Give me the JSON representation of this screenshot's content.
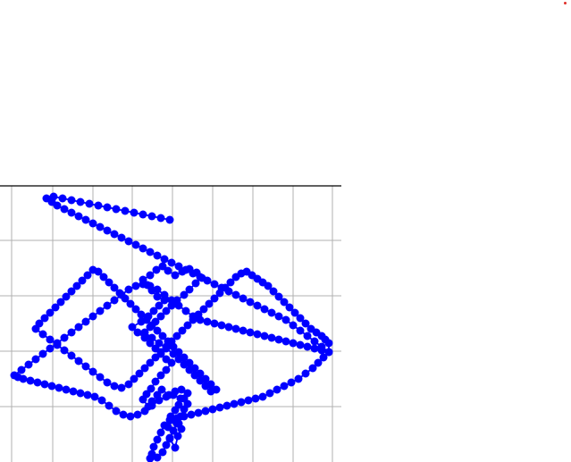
{
  "colors": {
    "series": "#0000ff",
    "grid": "#b0b0b0",
    "axis": "#000000",
    "marker": "#e0302a",
    "background": "#ffffff"
  },
  "chart_data": {
    "type": "line",
    "title": "",
    "xlabel": "",
    "ylabel": "",
    "grid": true,
    "legend": "none",
    "xlim": [
      0,
      382
    ],
    "ylim": [
      0,
      309
    ],
    "xgrid": [
      13,
      59,
      104,
      148,
      193,
      238,
      283,
      328,
      372
    ],
    "ygrid": [
      61,
      123,
      185,
      247
    ],
    "series": [
      {
        "marker": "circle",
        "values": [
          [
            190,
            283
          ],
          [
            196,
            293
          ],
          [
            199,
            280
          ],
          [
            203,
            272
          ],
          [
            200,
            266
          ],
          [
            194,
            262
          ],
          [
            188,
            270
          ],
          [
            191,
            258
          ],
          [
            196,
            251
          ],
          [
            200,
            245
          ],
          [
            206,
            238
          ],
          [
            210,
            232
          ],
          [
            203,
            228
          ],
          [
            196,
            230
          ],
          [
            189,
            234
          ],
          [
            181,
            228
          ],
          [
            176,
            234
          ],
          [
            170,
            241
          ],
          [
            166,
            247
          ],
          [
            160,
            239
          ],
          [
            164,
            233
          ],
          [
            169,
            227
          ],
          [
            174,
            219
          ],
          [
            180,
            212
          ],
          [
            186,
            206
          ],
          [
            192,
            198
          ],
          [
            186,
            194
          ],
          [
            180,
            188
          ],
          [
            174,
            182
          ],
          [
            168,
            176
          ],
          [
            162,
            170
          ],
          [
            154,
            164
          ],
          [
            148,
            158
          ],
          [
            158,
            152
          ],
          [
            166,
            146
          ],
          [
            172,
            140
          ],
          [
            178,
            134
          ],
          [
            184,
            128
          ],
          [
            176,
            124
          ],
          [
            170,
            117
          ],
          [
            165,
            111
          ],
          [
            160,
            105
          ],
          [
            168,
            100
          ],
          [
            175,
            94
          ],
          [
            182,
            90
          ],
          [
            188,
            95
          ],
          [
            196,
            100
          ],
          [
            204,
            96
          ],
          [
            212,
            93
          ],
          [
            220,
            97
          ],
          [
            226,
            103
          ],
          [
            219,
            109
          ],
          [
            212,
            116
          ],
          [
            206,
            122
          ],
          [
            198,
            128
          ],
          [
            192,
            134
          ],
          [
            186,
            140
          ],
          [
            180,
            146
          ],
          [
            174,
            152
          ],
          [
            168,
            158
          ],
          [
            162,
            164
          ],
          [
            170,
            170
          ],
          [
            178,
            176
          ],
          [
            186,
            182
          ],
          [
            194,
            188
          ],
          [
            200,
            194
          ],
          [
            206,
            200
          ],
          [
            212,
            206
          ],
          [
            218,
            212
          ],
          [
            224,
            218
          ],
          [
            230,
            224
          ],
          [
            236,
            230
          ],
          [
            242,
            228
          ],
          [
            236,
            222
          ],
          [
            230,
            216
          ],
          [
            224,
            210
          ],
          [
            218,
            204
          ],
          [
            212,
            198
          ],
          [
            206,
            192
          ],
          [
            200,
            186
          ],
          [
            194,
            180
          ],
          [
            188,
            174
          ],
          [
            182,
            168
          ],
          [
            176,
            162
          ],
          [
            170,
            156
          ],
          [
            164,
            150
          ],
          [
            158,
            144
          ],
          [
            152,
            138
          ],
          [
            146,
            132
          ],
          [
            140,
            126
          ],
          [
            134,
            120
          ],
          [
            128,
            114
          ],
          [
            122,
            108
          ],
          [
            116,
            102
          ],
          [
            110,
            96
          ],
          [
            104,
            94
          ],
          [
            98,
            100
          ],
          [
            92,
            106
          ],
          [
            86,
            112
          ],
          [
            80,
            118
          ],
          [
            74,
            124
          ],
          [
            68,
            130
          ],
          [
            62,
            136
          ],
          [
            56,
            142
          ],
          [
            50,
            148
          ],
          [
            44,
            154
          ],
          [
            40,
            160
          ],
          [
            48,
            166
          ],
          [
            56,
            172
          ],
          [
            64,
            178
          ],
          [
            72,
            184
          ],
          [
            80,
            190
          ],
          [
            88,
            196
          ],
          [
            96,
            202
          ],
          [
            104,
            208
          ],
          [
            112,
            214
          ],
          [
            120,
            220
          ],
          [
            128,
            224
          ],
          [
            136,
            226
          ],
          [
            144,
            222
          ],
          [
            150,
            216
          ],
          [
            156,
            210
          ],
          [
            162,
            204
          ],
          [
            168,
            198
          ],
          [
            174,
            192
          ],
          [
            180,
            186
          ],
          [
            186,
            180
          ],
          [
            192,
            174
          ],
          [
            198,
            168
          ],
          [
            204,
            162
          ],
          [
            210,
            156
          ],
          [
            216,
            150
          ],
          [
            222,
            144
          ],
          [
            228,
            138
          ],
          [
            234,
            132
          ],
          [
            240,
            126
          ],
          [
            246,
            120
          ],
          [
            252,
            114
          ],
          [
            258,
            108
          ],
          [
            264,
            102
          ],
          [
            270,
            98
          ],
          [
            276,
            96
          ],
          [
            282,
            100
          ],
          [
            288,
            104
          ],
          [
            294,
            108
          ],
          [
            300,
            112
          ],
          [
            306,
            118
          ],
          [
            312,
            124
          ],
          [
            318,
            130
          ],
          [
            324,
            136
          ],
          [
            330,
            142
          ],
          [
            336,
            148
          ],
          [
            342,
            154
          ],
          [
            348,
            160
          ],
          [
            354,
            164
          ],
          [
            360,
            168
          ],
          [
            364,
            172
          ],
          [
            368,
            176
          ],
          [
            368,
            186
          ],
          [
            362,
            192
          ],
          [
            356,
            198
          ],
          [
            350,
            204
          ],
          [
            342,
            210
          ],
          [
            334,
            216
          ],
          [
            326,
            220
          ],
          [
            318,
            224
          ],
          [
            310,
            228
          ],
          [
            302,
            232
          ],
          [
            294,
            236
          ],
          [
            286,
            238
          ],
          [
            278,
            240
          ],
          [
            270,
            242
          ],
          [
            262,
            244
          ],
          [
            254,
            246
          ],
          [
            246,
            248
          ],
          [
            238,
            250
          ],
          [
            230,
            252
          ],
          [
            222,
            254
          ],
          [
            214,
            256
          ],
          [
            206,
            258
          ],
          [
            198,
            260
          ],
          [
            190,
            262
          ],
          [
            184,
            268
          ],
          [
            180,
            276
          ],
          [
            176,
            284
          ],
          [
            172,
            292
          ],
          [
            170,
            300
          ],
          [
            168,
            305
          ],
          [
            176,
            304
          ],
          [
            182,
            298
          ],
          [
            186,
            290
          ],
          [
            190,
            282
          ],
          [
            194,
            274
          ],
          [
            198,
            266
          ],
          [
            202,
            258
          ],
          [
            206,
            250
          ],
          [
            210,
            244
          ],
          [
            202,
            238
          ],
          [
            194,
            234
          ],
          [
            186,
            236
          ],
          [
            178,
            240
          ],
          [
            170,
            246
          ],
          [
            162,
            252
          ],
          [
            154,
            256
          ],
          [
            146,
            258
          ],
          [
            138,
            256
          ],
          [
            130,
            252
          ],
          [
            122,
            246
          ],
          [
            114,
            240
          ],
          [
            106,
            236
          ],
          [
            98,
            234
          ],
          [
            90,
            232
          ],
          [
            82,
            230
          ],
          [
            74,
            228
          ],
          [
            66,
            226
          ],
          [
            58,
            224
          ],
          [
            50,
            222
          ],
          [
            42,
            220
          ],
          [
            34,
            218
          ],
          [
            26,
            216
          ],
          [
            20,
            214
          ],
          [
            16,
            212
          ],
          [
            24,
            206
          ],
          [
            32,
            200
          ],
          [
            40,
            194
          ],
          [
            48,
            188
          ],
          [
            56,
            182
          ],
          [
            64,
            176
          ],
          [
            72,
            170
          ],
          [
            80,
            164
          ],
          [
            88,
            158
          ],
          [
            96,
            152
          ],
          [
            104,
            146
          ],
          [
            112,
            140
          ],
          [
            120,
            134
          ],
          [
            128,
            128
          ],
          [
            136,
            122
          ],
          [
            144,
            116
          ],
          [
            152,
            112
          ],
          [
            160,
            110
          ],
          [
            168,
            112
          ],
          [
            176,
            116
          ],
          [
            184,
            122
          ],
          [
            192,
            128
          ],
          [
            200,
            134
          ],
          [
            208,
            140
          ],
          [
            216,
            146
          ],
          [
            224,
            150
          ],
          [
            232,
            152
          ],
          [
            240,
            154
          ],
          [
            248,
            156
          ],
          [
            256,
            158
          ],
          [
            264,
            160
          ],
          [
            272,
            162
          ],
          [
            280,
            164
          ],
          [
            288,
            166
          ],
          [
            296,
            168
          ],
          [
            304,
            170
          ],
          [
            312,
            172
          ],
          [
            320,
            174
          ],
          [
            328,
            176
          ],
          [
            336,
            178
          ],
          [
            344,
            180
          ],
          [
            352,
            182
          ],
          [
            360,
            184
          ],
          [
            368,
            186
          ],
          [
            360,
            180
          ],
          [
            352,
            174
          ],
          [
            344,
            168
          ],
          [
            336,
            162
          ],
          [
            328,
            156
          ],
          [
            320,
            150
          ],
          [
            312,
            146
          ],
          [
            304,
            142
          ],
          [
            296,
            138
          ],
          [
            288,
            134
          ],
          [
            280,
            130
          ],
          [
            272,
            126
          ],
          [
            264,
            122
          ],
          [
            256,
            118
          ],
          [
            248,
            114
          ],
          [
            240,
            110
          ],
          [
            232,
            106
          ],
          [
            224,
            102
          ],
          [
            216,
            98
          ],
          [
            208,
            94
          ],
          [
            200,
            90
          ],
          [
            192,
            86
          ],
          [
            184,
            82
          ],
          [
            176,
            78
          ],
          [
            168,
            74
          ],
          [
            160,
            70
          ],
          [
            152,
            66
          ],
          [
            144,
            62
          ],
          [
            136,
            58
          ],
          [
            128,
            54
          ],
          [
            120,
            50
          ],
          [
            112,
            46
          ],
          [
            104,
            42
          ],
          [
            96,
            38
          ],
          [
            88,
            34
          ],
          [
            80,
            30
          ],
          [
            72,
            26
          ],
          [
            64,
            22
          ],
          [
            58,
            18
          ],
          [
            52,
            14
          ],
          [
            60,
            12
          ],
          [
            70,
            14
          ],
          [
            80,
            16
          ],
          [
            90,
            18
          ],
          [
            100,
            20
          ],
          [
            110,
            22
          ],
          [
            120,
            24
          ],
          [
            130,
            26
          ],
          [
            140,
            28
          ],
          [
            150,
            30
          ],
          [
            160,
            32
          ],
          [
            170,
            34
          ],
          [
            180,
            36
          ],
          [
            190,
            38
          ]
        ]
      }
    ]
  }
}
